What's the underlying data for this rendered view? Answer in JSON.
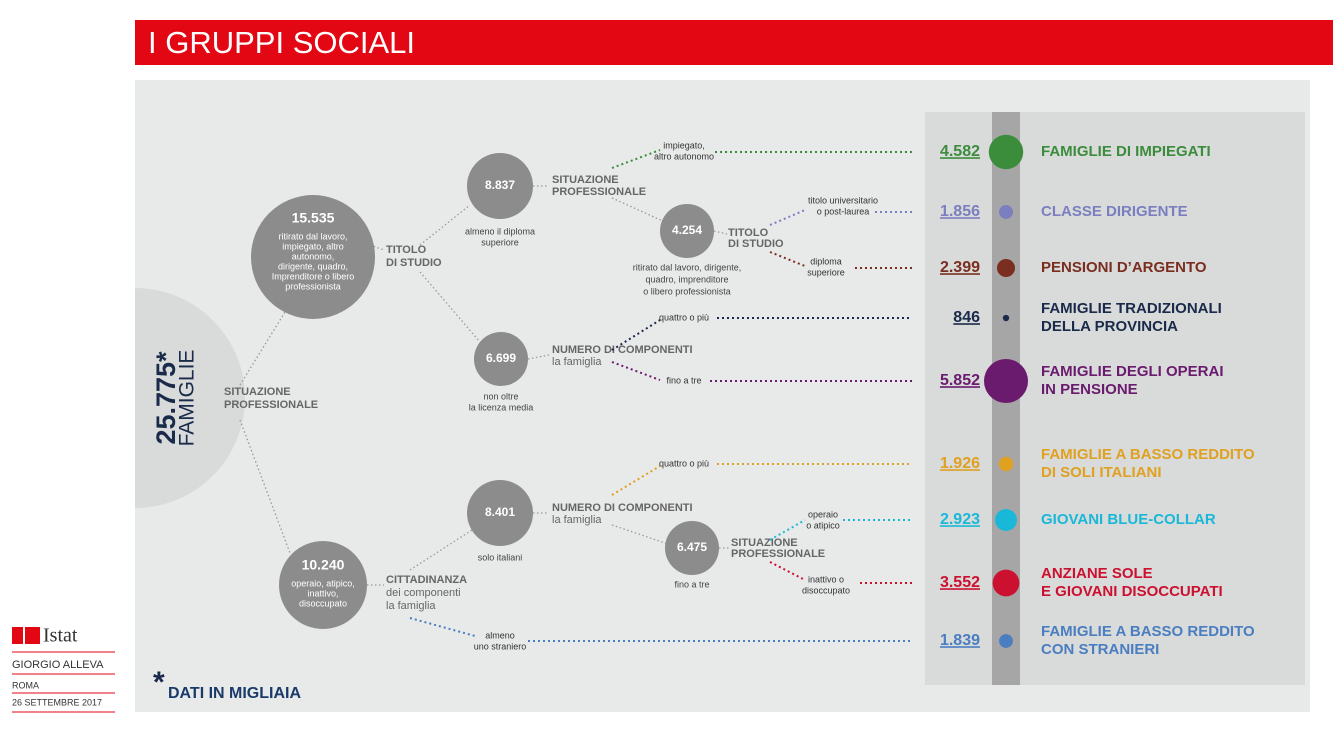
{
  "header": {
    "title": "I GRUPPI SOCIALI"
  },
  "total": {
    "label": "25.775*",
    "caption": "FAMIGLIE"
  },
  "splits": [
    {
      "lines": [
        "SITUAZIONE",
        "PROFESSIONALE"
      ]
    },
    {
      "lines": [
        "TITOLO",
        "DI STUDIO"
      ]
    },
    {
      "lines": [
        "SITUAZIONE",
        "PROFESSIONALE"
      ]
    },
    {
      "lines": [
        "TITOLO",
        "DI STUDIO"
      ]
    },
    {
      "lines": [
        "NUMERO DI COMPONENTI",
        "la famiglia"
      ]
    },
    {
      "lines": [
        "NUMERO DI COMPONENTI",
        "la famiglia"
      ]
    },
    {
      "lines": [
        "SITUAZIONE",
        "PROFESSIONALE"
      ]
    },
    {
      "lines": [
        "CITTADINANZA",
        "dei componenti",
        "la famiglia"
      ]
    }
  ],
  "nodes": [
    {
      "value": "15.535",
      "desc": [
        "ritirato dal lavoro,",
        "impiegato, altro",
        "autonomo,",
        "dirigente, quadro,",
        "Imprenditore o libero",
        "professionista"
      ]
    },
    {
      "value": "10.240",
      "desc": [
        "operaio, atipico,",
        "inattivo,",
        "disoccupato"
      ]
    },
    {
      "value": "8.837",
      "desc": [
        "almeno il diploma",
        "superiore"
      ]
    },
    {
      "value": "6.699",
      "desc": [
        "non oltre",
        "la licenza media"
      ]
    },
    {
      "value": "4.254",
      "desc": [
        "ritirato dal lavoro, dirigente,",
        "quadro, imprenditore",
        "o libero professionista"
      ]
    },
    {
      "value": "8.401",
      "desc": [
        "solo italiani"
      ]
    },
    {
      "value": "6.475",
      "desc": [
        "fino a tre"
      ]
    }
  ],
  "groups": [
    {
      "value": 4582,
      "label": "4.582",
      "name": [
        "FAMIGLIE DI IMPIEGATI"
      ],
      "branch": [
        "impiegato,",
        "altro autonomo"
      ],
      "color": "#3b8c3b"
    },
    {
      "value": 1856,
      "label": "1.856",
      "name": [
        "CLASSE DIRIGENTE"
      ],
      "branch": [
        "titolo universitario",
        "o post-laurea"
      ],
      "color": "#7b7fbf"
    },
    {
      "value": 2399,
      "label": "2.399",
      "name": [
        "PENSIONI D’ARGENTO"
      ],
      "branch": [
        "diploma",
        "superiore"
      ],
      "color": "#7a2e1f"
    },
    {
      "value": 846,
      "label": "846",
      "name": [
        "FAMIGLIE TRADIZIONALI",
        "DELLA PROVINCIA"
      ],
      "branch": [
        "quattro o più"
      ],
      "color": "#1a2a4a"
    },
    {
      "value": 5852,
      "label": "5.852",
      "name": [
        "FAMIGLIE DEGLI OPERAI",
        "IN PENSIONE"
      ],
      "branch": [
        "fino a tre"
      ],
      "color": "#6a1b6e"
    },
    {
      "value": 1926,
      "label": "1.926",
      "name": [
        "FAMIGLIE A BASSO REDDITO",
        "DI SOLI ITALIANI"
      ],
      "branch": [
        "quattro o più"
      ],
      "color": "#e0a020"
    },
    {
      "value": 2923,
      "label": "2.923",
      "name": [
        "GIOVANI BLUE-COLLAR"
      ],
      "branch": [
        "operaio",
        "o atipico"
      ],
      "color": "#1ab8d8"
    },
    {
      "value": 3552,
      "label": "3.552",
      "name": [
        "ANZIANE SOLE",
        "E GIOVANI DISOCCUPATI"
      ],
      "branch": [
        "inattivo o",
        "disoccupato"
      ],
      "color": "#cc1030"
    },
    {
      "value": 1839,
      "label": "1.839",
      "name": [
        "FAMIGLIE A BASSO REDDITO",
        "CON STRANIERI"
      ],
      "branch": [
        "almeno",
        "uno straniero"
      ],
      "color": "#4a7ec0"
    }
  ],
  "footnote": {
    "star": "*",
    "text": "DATI IN MIGLIAIA"
  },
  "footer": {
    "logo": "Istat",
    "author": "GIORGIO ALLEVA",
    "place": "ROMA",
    "date": "26 SETTEMBRE 2017"
  }
}
